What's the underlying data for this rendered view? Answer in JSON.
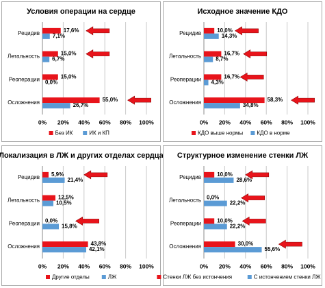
{
  "chart_data": [
    {
      "type": "hbar",
      "title": "Условия операции на сердце",
      "categories": [
        "Рецидив",
        "Летальность",
        "Реоперации",
        "Осложнения"
      ],
      "series": [
        {
          "name": "Без ИК",
          "color": "#e8141b",
          "values": [
            17.6,
            15.0,
            15.0,
            55.0
          ],
          "value_labels": [
            "17,6%",
            "15,0%",
            "15,0%",
            "55,0%"
          ]
        },
        {
          "name": "ИК и КП",
          "color": "#5b9bd5",
          "values": [
            7.1,
            6.7,
            0.0,
            26.7
          ],
          "value_labels": [
            "7,1%",
            "6,7%",
            "0,0%",
            "26,7%"
          ]
        }
      ],
      "xlim": [
        0,
        100
      ],
      "xticks": [
        {
          "value": 0,
          "label": "0%"
        },
        {
          "value": 20,
          "label": "20%"
        },
        {
          "value": 40,
          "label": "40%"
        },
        {
          "value": 60,
          "label": "60%"
        },
        {
          "value": 80,
          "label": "80%"
        },
        {
          "value": 100,
          "label": "100%"
        }
      ],
      "grid": true,
      "legend": "bottom"
    },
    {
      "type": "hbar",
      "title": "Исходное значение КДО",
      "categories": [
        "Рецидив",
        "Летальность",
        "Реоперации",
        "Осложнения"
      ],
      "series": [
        {
          "name": "КДО выше нормы",
          "color": "#e8141b",
          "values": [
            10.0,
            16.7,
            16.7,
            58.3
          ],
          "value_labels": [
            "10,0%",
            "16,7%",
            "16,7%",
            "58,3%"
          ]
        },
        {
          "name": "КДО в норме",
          "color": "#5b9bd5",
          "values": [
            14.3,
            8.7,
            4.3,
            34.8
          ],
          "value_labels": [
            "14,3%",
            "8,7%",
            "4,3%",
            "34,8%"
          ]
        }
      ],
      "xlim": [
        0,
        100
      ],
      "xticks": [
        {
          "value": 0,
          "label": "0%"
        },
        {
          "value": 20,
          "label": "20%"
        },
        {
          "value": 40,
          "label": "40%"
        },
        {
          "value": 60,
          "label": "60%"
        },
        {
          "value": 80,
          "label": "80%"
        },
        {
          "value": 100,
          "label": "100%"
        }
      ],
      "grid": true,
      "legend": "bottom"
    },
    {
      "type": "hbar",
      "title": "Локализация в ЛЖ и других отделах сердца",
      "categories": [
        "Рецидив",
        "Летальность",
        "Реоперации",
        "Осложнения"
      ],
      "series": [
        {
          "name": "Другие отделы",
          "color": "#e8141b",
          "values": [
            5.9,
            12.5,
            0.0,
            43.8
          ],
          "value_labels": [
            "5,9%",
            "12,5%",
            "0,0%",
            "43,8%"
          ]
        },
        {
          "name": "ЛЖ",
          "color": "#5b9bd5",
          "values": [
            21.4,
            10.5,
            15.8,
            42.1
          ],
          "value_labels": [
            "21,4%",
            "10,5%",
            "15,8%",
            "42,1%"
          ]
        }
      ],
      "xlim": [
        0,
        100
      ],
      "xticks": [
        {
          "value": 0,
          "label": "0%"
        },
        {
          "value": 20,
          "label": "20%"
        },
        {
          "value": 40,
          "label": "40%"
        },
        {
          "value": 60,
          "label": "60%"
        },
        {
          "value": 80,
          "label": "80%"
        },
        {
          "value": 100,
          "label": "100%"
        }
      ],
      "grid": true,
      "legend": "bottom"
    },
    {
      "type": "hbar",
      "title": "Структурное изменение стенки ЛЖ",
      "categories": [
        "Рецидив",
        "Летальность",
        "Реоперации",
        "Осложнения"
      ],
      "series": [
        {
          "name": "Стенки ЛЖ без истончения",
          "color": "#e8141b",
          "values": [
            10.0,
            0.0,
            10.0,
            30.0
          ],
          "value_labels": [
            "10,0%",
            "0,0%",
            "10,0%",
            "30,0%"
          ]
        },
        {
          "name": "С истончением стенки ЛЖ",
          "color": "#5b9bd5",
          "values": [
            28.6,
            22.2,
            22.2,
            55.6
          ],
          "value_labels": [
            "28,6%",
            "22,2%",
            "22,2%",
            "55,6%"
          ]
        }
      ],
      "xlim": [
        0,
        100
      ],
      "xticks": [
        {
          "value": 0,
          "label": "0%"
        },
        {
          "value": 20,
          "label": "20%"
        },
        {
          "value": 40,
          "label": "40%"
        },
        {
          "value": 60,
          "label": "60%"
        },
        {
          "value": 80,
          "label": "80%"
        },
        {
          "value": 100,
          "label": "100%"
        }
      ],
      "grid": true,
      "legend": "bottom"
    }
  ]
}
